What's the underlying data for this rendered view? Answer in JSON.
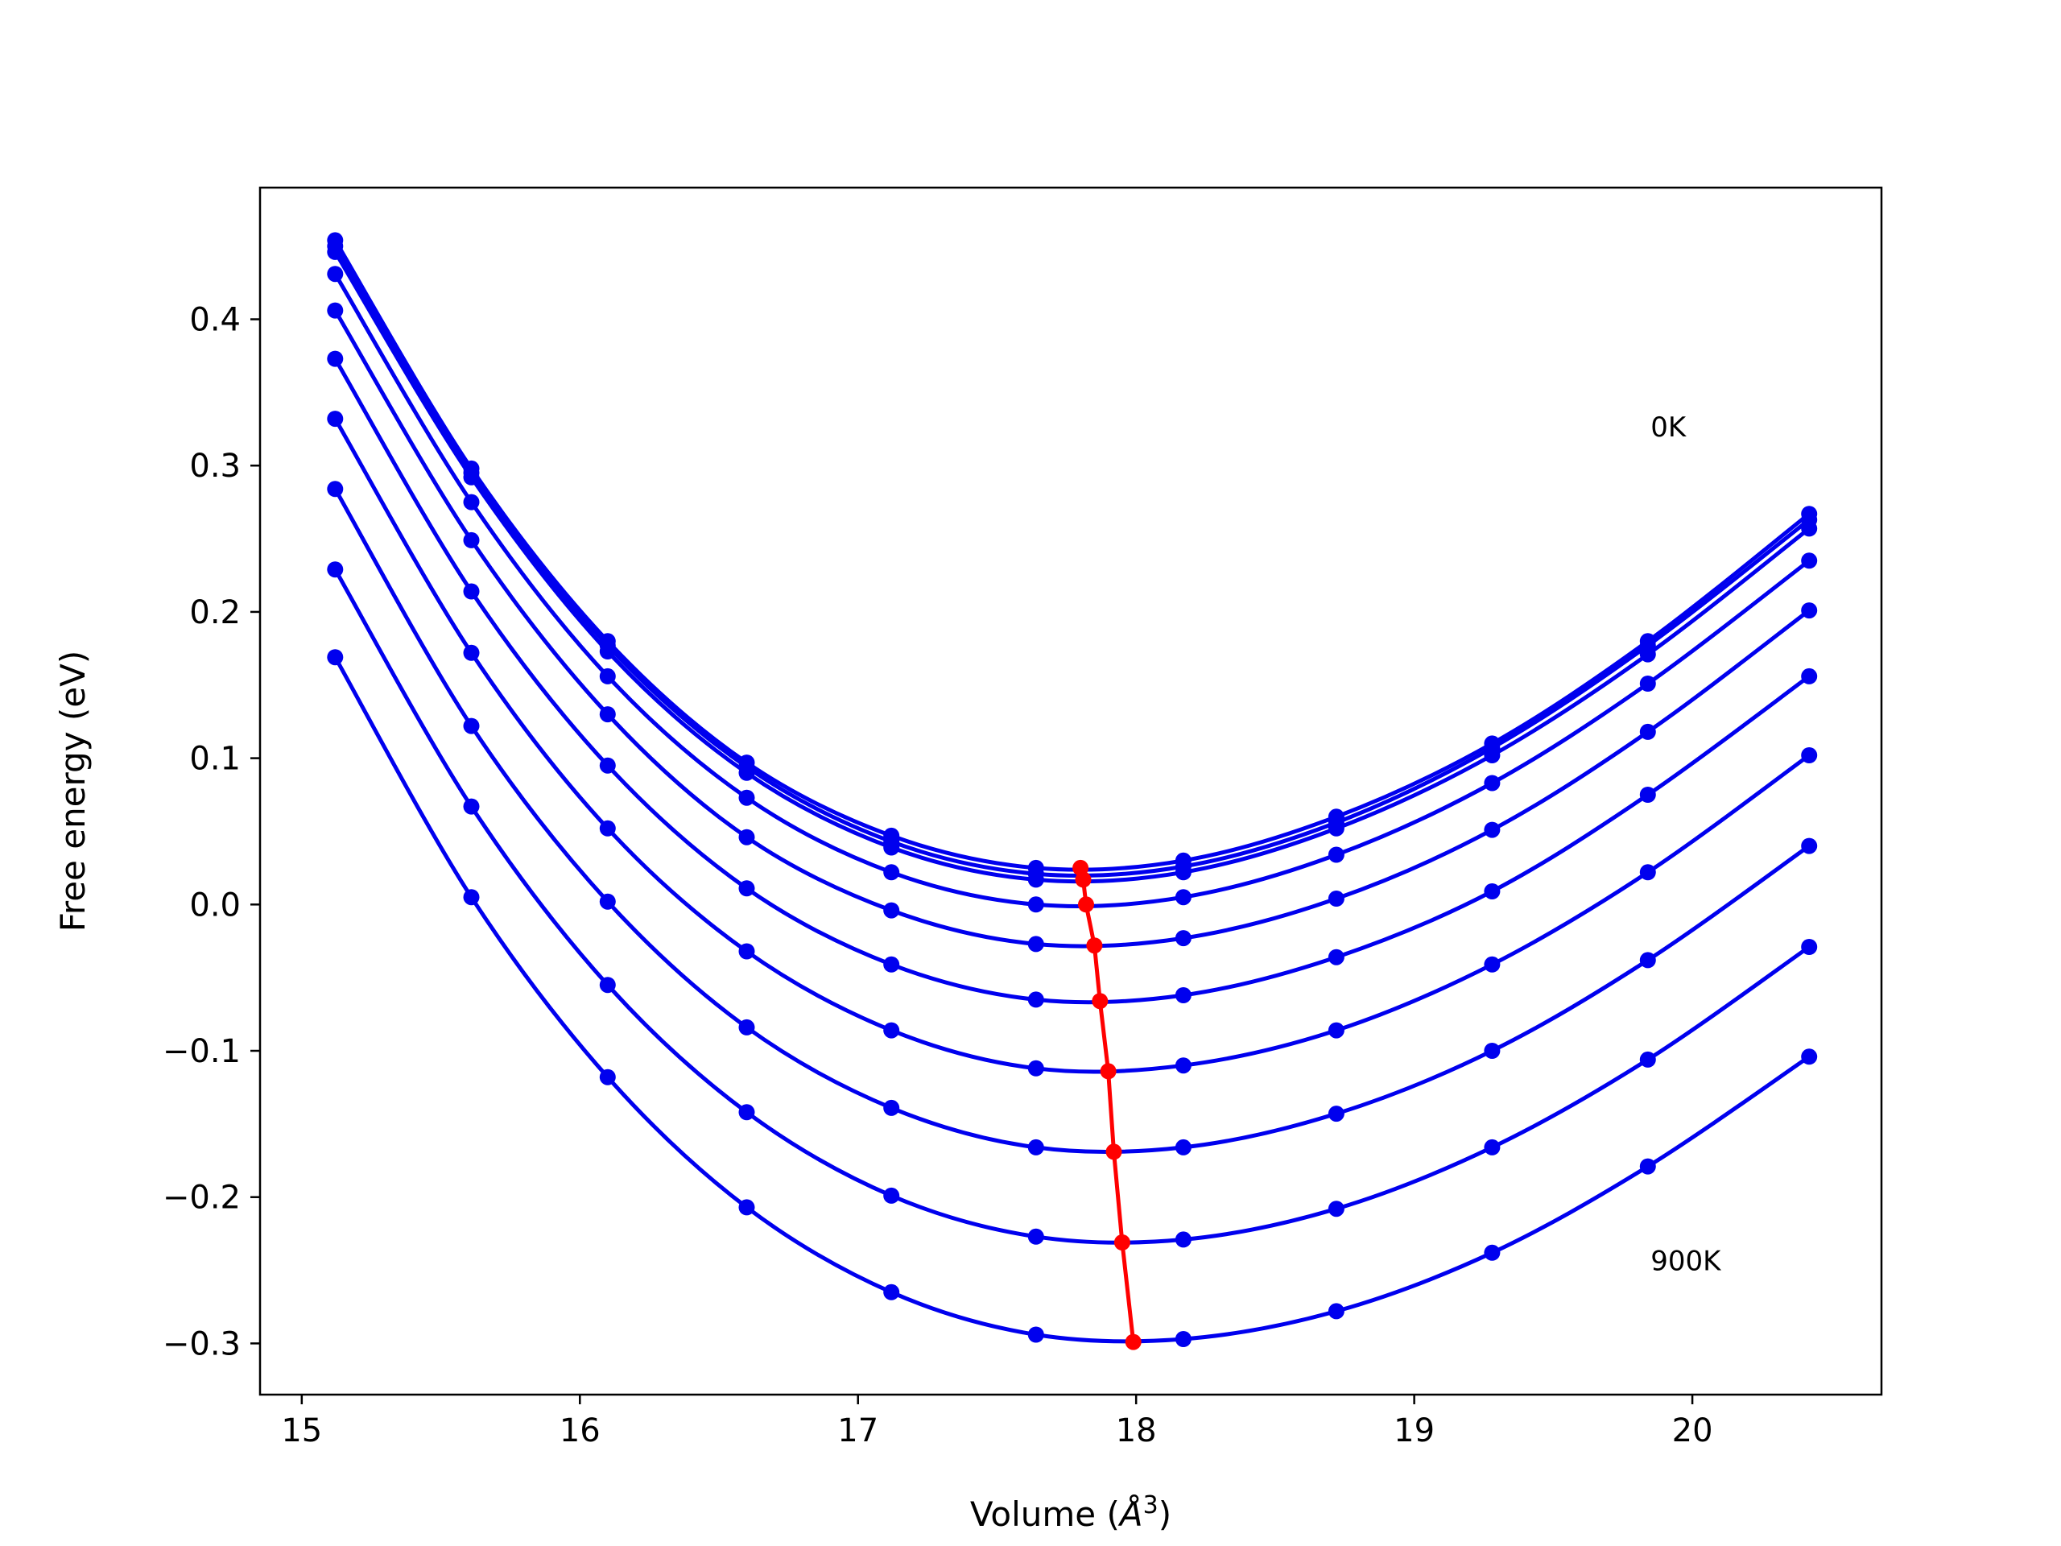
{
  "chart_data": {
    "type": "line",
    "title": "",
    "xlabel": "Volume (",
    "xlabel_symbol": "Å",
    "xlabel_exponent": "3",
    "xlabel_suffix": ")",
    "ylabel": "Free energy (eV)",
    "xlim": [
      14.85,
      20.68
    ],
    "ylim": [
      -0.335,
      0.49
    ],
    "xticks": [
      15,
      16,
      17,
      18,
      19,
      20
    ],
    "xtick_labels": [
      "15",
      "16",
      "17",
      "18",
      "19",
      "20"
    ],
    "yticks": [
      -0.3,
      -0.2,
      -0.1,
      0.0,
      0.1,
      0.2,
      0.3,
      0.4
    ],
    "ytick_labels": [
      "−0.3",
      "−0.2",
      "−0.1",
      "0.0",
      "0.1",
      "0.2",
      "0.3",
      "0.4"
    ],
    "grid": false,
    "colors": {
      "curves": "#0000ee",
      "minima": "#ff0000",
      "frame": "#000000"
    },
    "x": [
      15.12,
      15.61,
      16.1,
      16.6,
      17.12,
      17.64,
      18.17,
      18.72,
      19.28,
      19.84,
      20.42
    ],
    "series": [
      {
        "values": [
          0.454,
          0.298,
          0.18,
          0.097,
          0.047,
          0.025,
          0.03,
          0.06,
          0.11,
          0.18,
          0.267
        ]
      },
      {
        "values": [
          0.45,
          0.295,
          0.177,
          0.094,
          0.043,
          0.021,
          0.026,
          0.056,
          0.107,
          0.177,
          0.263
        ]
      },
      {
        "values": [
          0.446,
          0.292,
          0.173,
          0.09,
          0.039,
          0.017,
          0.022,
          0.052,
          0.102,
          0.171,
          0.257
        ]
      },
      {
        "values": [
          0.431,
          0.275,
          0.156,
          0.073,
          0.022,
          0.0,
          0.005,
          0.034,
          0.083,
          0.151,
          0.235
        ]
      },
      {
        "values": [
          0.406,
          0.249,
          0.13,
          0.046,
          -0.004,
          -0.027,
          -0.023,
          0.004,
          0.051,
          0.118,
          0.201
        ]
      },
      {
        "values": [
          0.373,
          0.214,
          0.095,
          0.011,
          -0.041,
          -0.065,
          -0.062,
          -0.036,
          0.009,
          0.075,
          0.156
        ]
      },
      {
        "values": [
          0.332,
          0.172,
          0.052,
          -0.032,
          -0.086,
          -0.112,
          -0.11,
          -0.086,
          -0.041,
          0.022,
          0.102
        ]
      },
      {
        "values": [
          0.284,
          0.122,
          0.002,
          -0.084,
          -0.139,
          -0.166,
          -0.166,
          -0.143,
          -0.1,
          -0.038,
          0.04
        ]
      },
      {
        "values": [
          0.229,
          0.067,
          -0.055,
          -0.142,
          -0.199,
          -0.227,
          -0.229,
          -0.208,
          -0.166,
          -0.106,
          -0.029
        ]
      },
      {
        "values": [
          0.169,
          0.005,
          -0.118,
          -0.207,
          -0.265,
          -0.294,
          -0.297,
          -0.278,
          -0.238,
          -0.179,
          -0.104
        ]
      }
    ],
    "minima_line": {
      "x": [
        17.8,
        17.81,
        17.82,
        17.85,
        17.87,
        17.9,
        17.92,
        17.95,
        17.99
      ],
      "y": [
        0.025,
        0.017,
        0.0,
        -0.028,
        -0.066,
        -0.114,
        -0.169,
        -0.231,
        -0.299
      ]
    },
    "annotations": [
      {
        "text": "0K",
        "x": 19.85,
        "y": 0.32
      },
      {
        "text": "900K",
        "x": 19.85,
        "y": -0.25
      }
    ]
  }
}
